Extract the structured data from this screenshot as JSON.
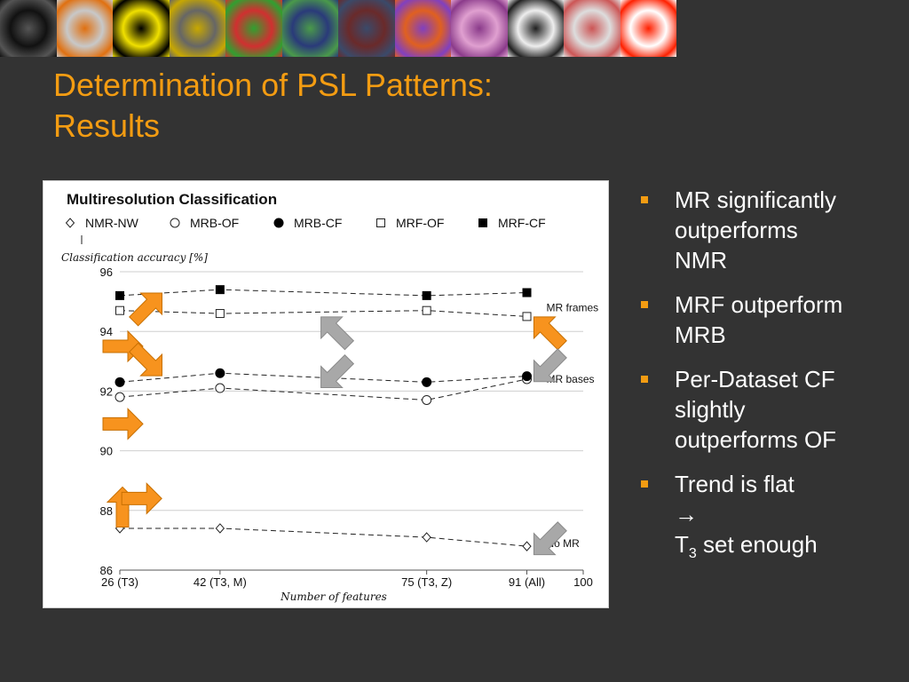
{
  "slide": {
    "title_lines": [
      "Determination of PSL Patterns:",
      "Results"
    ],
    "bullets": [
      {
        "lines": [
          "MR significantly",
          "outperforms",
          "NMR"
        ]
      },
      {
        "lines": [
          "MRF outperform",
          "MRB"
        ]
      },
      {
        "lines": [
          "Per-Dataset CF",
          "slightly",
          "outperforms OF"
        ]
      },
      {
        "lines": [
          "Trend is flat",
          "→"
        ],
        "last_prefix": "T",
        "last_sub": "3",
        "last_suffix": " set enough"
      }
    ]
  },
  "colors": {
    "background": "#333333",
    "title": "#F39C12",
    "bullet_text": "#FFFFFF",
    "bullet_marker": "#F39C12",
    "arrow_orange": "#F7931E",
    "arrow_gray": "#A8A8A8"
  },
  "thumbnails": [
    {
      "name": "cell-outlines-thumbnail",
      "colors": [
        "#111111",
        "#555555"
      ]
    },
    {
      "name": "fractal-thumbnail",
      "colors": [
        "#c8c8c8",
        "#e07010"
      ]
    },
    {
      "name": "yellow-branches-thumbnail",
      "colors": [
        "#f0e000",
        "#000000"
      ]
    },
    {
      "name": "grid-cells-thumbnail",
      "colors": [
        "#666666",
        "#c8a800"
      ]
    },
    {
      "name": "voronoi-thumbnail",
      "colors": [
        "#d03030",
        "#30a030"
      ]
    },
    {
      "name": "blue-speckle-thumbnail",
      "colors": [
        "#2a3a7a",
        "#4a9a4a"
      ]
    },
    {
      "name": "texture-thumbnail",
      "colors": [
        "#6a2a2a",
        "#3a4a6a"
      ]
    },
    {
      "name": "colored-regions-thumbnail",
      "colors": [
        "#e06020",
        "#8040c0"
      ]
    },
    {
      "name": "tissue-stain-thumbnail",
      "colors": [
        "#e0a0d0",
        "#8a3a8a"
      ]
    },
    {
      "name": "microscopy-rings-thumbnail",
      "colors": [
        "#eeeeee",
        "#202020"
      ]
    },
    {
      "name": "red-cells-thumbnail",
      "colors": [
        "#dddddd",
        "#cc5555"
      ]
    },
    {
      "name": "glowing-sun-thumbnail",
      "colors": [
        "#ffffff",
        "#ff2000"
      ]
    }
  ],
  "chart_data": {
    "type": "line",
    "title": "Multiresolution Classification",
    "ylabel": "Classification accuracy [%]",
    "xlabel": "Number of features",
    "x_ticks": [
      {
        "value": 26,
        "label": "26 (T3)"
      },
      {
        "value": 42,
        "label": "42 (T3, M)"
      },
      {
        "value": 75,
        "label": "75 (T3, Z)"
      },
      {
        "value": 91,
        "label": "91 (All)"
      },
      {
        "value": 100,
        "label": "100"
      }
    ],
    "xlim": [
      26,
      100
    ],
    "ylim": [
      86,
      96
    ],
    "y_ticks": [
      86,
      88,
      90,
      92,
      94,
      96
    ],
    "grid": "horizontal",
    "legend_position": "top",
    "series": [
      {
        "name": "NMR-NW",
        "marker": "open-diamond",
        "x": [
          26,
          42,
          75,
          91
        ],
        "y": [
          87.4,
          87.4,
          87.1,
          86.8
        ]
      },
      {
        "name": "MRB-OF",
        "marker": "open-circle",
        "x": [
          26,
          42,
          75,
          91
        ],
        "y": [
          91.8,
          92.1,
          91.7,
          92.4
        ]
      },
      {
        "name": "MRB-CF",
        "marker": "filled-circle",
        "x": [
          26,
          42,
          75,
          91
        ],
        "y": [
          92.3,
          92.6,
          92.3,
          92.5
        ]
      },
      {
        "name": "MRF-OF",
        "marker": "open-square",
        "x": [
          26,
          42,
          75,
          91
        ],
        "y": [
          94.7,
          94.6,
          94.7,
          94.5
        ]
      },
      {
        "name": "MRF-CF",
        "marker": "filled-square",
        "x": [
          26,
          42,
          75,
          91
        ],
        "y": [
          95.2,
          95.4,
          95.2,
          95.3
        ]
      }
    ],
    "annotations": [
      {
        "text": "MR frames",
        "x": 91,
        "y": 94.8
      },
      {
        "text": "MR bases",
        "x": 91,
        "y": 92.4
      },
      {
        "text": "No MR",
        "x": 91,
        "y": 86.9
      }
    ],
    "highlight_arrows": [
      {
        "color": "orange",
        "direction": "up-right",
        "x": 30,
        "y": 94.8
      },
      {
        "color": "orange",
        "direction": "right",
        "x": 26,
        "y": 93.5
      },
      {
        "color": "orange",
        "direction": "down-right",
        "x": 30,
        "y": 93.0
      },
      {
        "color": "orange",
        "direction": "right",
        "x": 26,
        "y": 90.9
      },
      {
        "color": "orange",
        "direction": "up",
        "x": 26,
        "y": 88.1
      },
      {
        "color": "orange",
        "direction": "right",
        "x": 29,
        "y": 88.4
      },
      {
        "color": "orange",
        "direction": "up-left",
        "x": 94,
        "y": 94.0
      },
      {
        "color": "gray",
        "direction": "up-left",
        "x": 60,
        "y": 94.0
      },
      {
        "color": "gray",
        "direction": "down-left",
        "x": 60,
        "y": 92.6
      },
      {
        "color": "gray",
        "direction": "down-left",
        "x": 94,
        "y": 92.8
      },
      {
        "color": "gray",
        "direction": "down-left",
        "x": 94,
        "y": 87.0
      }
    ]
  }
}
